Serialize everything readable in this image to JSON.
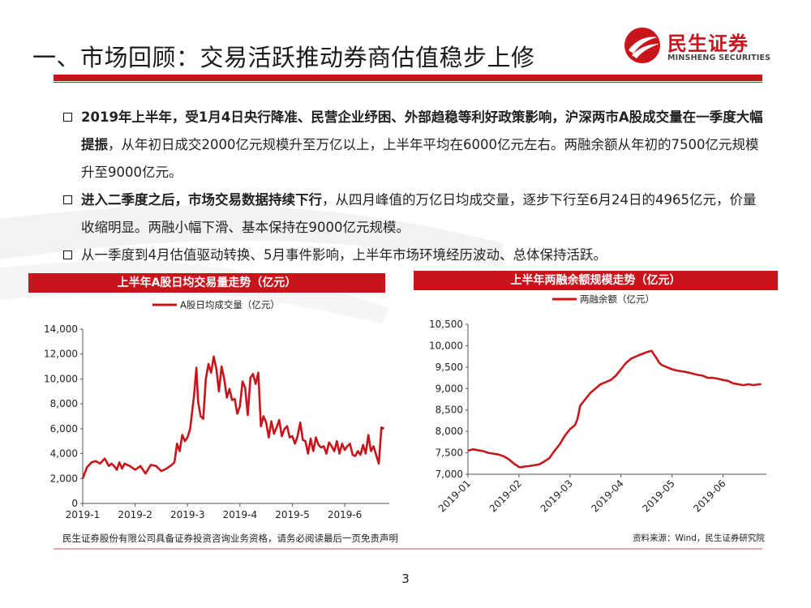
{
  "header": {
    "title": "一、市场回顾：交易活跃推动券商估值稳步上修",
    "logo_cn": "民生证券",
    "logo_en": "MINSHENG SECURITIES"
  },
  "bullets": [
    {
      "bold": "2019年上半年，受1月4日央行降准、民营企业纾困、外部趋稳等利好政策影响，沪深两市A股成交量在一季度大幅提振",
      "normal": "，从年初日成交2000亿元规模升至万亿以上，上半年平均在6000亿元左右。两融余额从年初的7500亿元规模升至9000亿元。"
    },
    {
      "bold": "进入二季度之后，市场交易数据持续下行",
      "normal": "，从四月峰值的万亿日均成交量，逐步下行至6月24日的4965亿元，价量收缩明显。两融小幅下滑、基本保持在9000亿元规模。"
    },
    {
      "bold": "",
      "normal": "从一季度到4月估值驱动转换、5月事件影响，上半年市场环境经历波动、总体保持活跃。"
    }
  ],
  "colors": {
    "accent": "#c8151b",
    "line": "#c8151b"
  },
  "chart_data": [
    {
      "type": "line",
      "title": "上半年A股日均交易量走势（亿元）",
      "legend": "top-center",
      "series": [
        {
          "name": "A股日均成交量（亿元）",
          "x": [
            0.0,
            0.08,
            0.17,
            0.25,
            0.33,
            0.42,
            0.5,
            0.55,
            0.6,
            0.65,
            0.7,
            0.75,
            0.8,
            0.85,
            0.9,
            1.0,
            1.1,
            1.2,
            1.3,
            1.4,
            1.5,
            1.6,
            1.7,
            1.75,
            1.8,
            1.85,
            1.9,
            1.95,
            2.0,
            2.05,
            2.1,
            2.12,
            2.17,
            2.2,
            2.25,
            2.3,
            2.35,
            2.4,
            2.45,
            2.5,
            2.55,
            2.6,
            2.65,
            2.7,
            2.75,
            2.8,
            2.85,
            2.9,
            2.95,
            3.0,
            3.05,
            3.1,
            3.15,
            3.2,
            3.25,
            3.3,
            3.35,
            3.4,
            3.45,
            3.5,
            3.55,
            3.6,
            3.65,
            3.7,
            3.75,
            3.8,
            3.85,
            3.9,
            3.95,
            4.0,
            4.05,
            4.1,
            4.15,
            4.2,
            4.25,
            4.3,
            4.35,
            4.4,
            4.45,
            4.5,
            4.55,
            4.6,
            4.65,
            4.7,
            4.75,
            4.8,
            4.85,
            4.9,
            4.95,
            5.0,
            5.05,
            5.1,
            5.15,
            5.2,
            5.25,
            5.3,
            5.35,
            5.4,
            5.45,
            5.5,
            5.55,
            5.6,
            5.65,
            5.7,
            5.75
          ],
          "values": [
            2000,
            2900,
            3300,
            3400,
            3200,
            3600,
            3000,
            3200,
            3000,
            2700,
            3300,
            2800,
            3200,
            3100,
            3000,
            2700,
            3000,
            2400,
            3100,
            3000,
            2600,
            2800,
            3100,
            3300,
            4800,
            4200,
            5500,
            5000,
            5300,
            6000,
            7800,
            8500,
            10900,
            8200,
            7000,
            6800,
            10000,
            11200,
            10500,
            11800,
            10800,
            9000,
            11000,
            10000,
            8500,
            9200,
            8300,
            8400,
            7200,
            7800,
            9800,
            9300,
            7100,
            10100,
            10400,
            9600,
            10500,
            6200,
            7000,
            6500,
            5300,
            6600,
            5600,
            6100,
            6700,
            5400,
            6000,
            6200,
            5300,
            5400,
            4800,
            5400,
            6500,
            5100,
            5000,
            4000,
            5200,
            4200,
            5300,
            4700,
            4500,
            4600,
            4000,
            4900,
            4600,
            4200,
            5000,
            4000,
            4800,
            4300,
            4600,
            4800,
            3900,
            3800,
            4200,
            3900,
            4700,
            4000,
            5500,
            4200,
            4600,
            3900,
            3200,
            6100,
            6000
          ],
          "color": "#c8151b"
        }
      ],
      "x_ticks": [
        "2019-1",
        "2019-2",
        "2019-3",
        "2019-4",
        "2019-5",
        "2019-6"
      ],
      "y_ticks": [
        "0",
        "2,000",
        "4,000",
        "6,000",
        "8,000",
        "10,000",
        "12,000",
        "14,000"
      ],
      "xlim": [
        0,
        5.85
      ],
      "ylim": [
        0,
        14000
      ]
    },
    {
      "type": "line",
      "title": "上半年两融余额规模走势（亿元）",
      "legend": "top-center",
      "series": [
        {
          "name": "两融余额（亿元）",
          "x": [
            0.0,
            0.1,
            0.2,
            0.3,
            0.4,
            0.5,
            0.6,
            0.7,
            0.8,
            0.9,
            1.0,
            1.05,
            1.1,
            1.2,
            1.3,
            1.4,
            1.5,
            1.6,
            1.7,
            1.8,
            1.9,
            2.0,
            2.1,
            2.15,
            2.2,
            2.3,
            2.4,
            2.5,
            2.6,
            2.7,
            2.8,
            2.9,
            3.0,
            3.1,
            3.2,
            3.3,
            3.4,
            3.5,
            3.6,
            3.7,
            3.75,
            3.8,
            3.9,
            4.0,
            4.1,
            4.2,
            4.3,
            4.4,
            4.5,
            4.6,
            4.7,
            4.8,
            4.9,
            5.0,
            5.1,
            5.2,
            5.3,
            5.4,
            5.5,
            5.6,
            5.7,
            5.75
          ],
          "values": [
            7550,
            7580,
            7560,
            7540,
            7500,
            7480,
            7460,
            7420,
            7350,
            7250,
            7170,
            7160,
            7180,
            7190,
            7210,
            7230,
            7300,
            7380,
            7550,
            7700,
            7900,
            8050,
            8150,
            8300,
            8600,
            8750,
            8900,
            9000,
            9100,
            9150,
            9200,
            9300,
            9450,
            9600,
            9700,
            9750,
            9800,
            9850,
            9880,
            9700,
            9600,
            9550,
            9500,
            9450,
            9420,
            9400,
            9380,
            9350,
            9320,
            9300,
            9250,
            9250,
            9230,
            9200,
            9180,
            9120,
            9100,
            9080,
            9100,
            9080,
            9100,
            9100
          ],
          "color": "#c8151b"
        }
      ],
      "x_ticks": [
        "2019-01",
        "2019-02",
        "2019-03",
        "2019-04",
        "2019-05",
        "2019-06"
      ],
      "y_ticks": [
        "7,000",
        "7,500",
        "8,000",
        "8,500",
        "9,000",
        "9,500",
        "10,000",
        "10,500"
      ],
      "xlim": [
        0,
        5.85
      ],
      "ylim": [
        7000,
        10500
      ]
    }
  ],
  "footer": {
    "disclaimer": "民生证券股份有限公司具备证券投资咨询业务资格，请务必阅读最后一页免责声明",
    "source": "资料来源：Wind，民生证券研究院",
    "page": "3"
  }
}
